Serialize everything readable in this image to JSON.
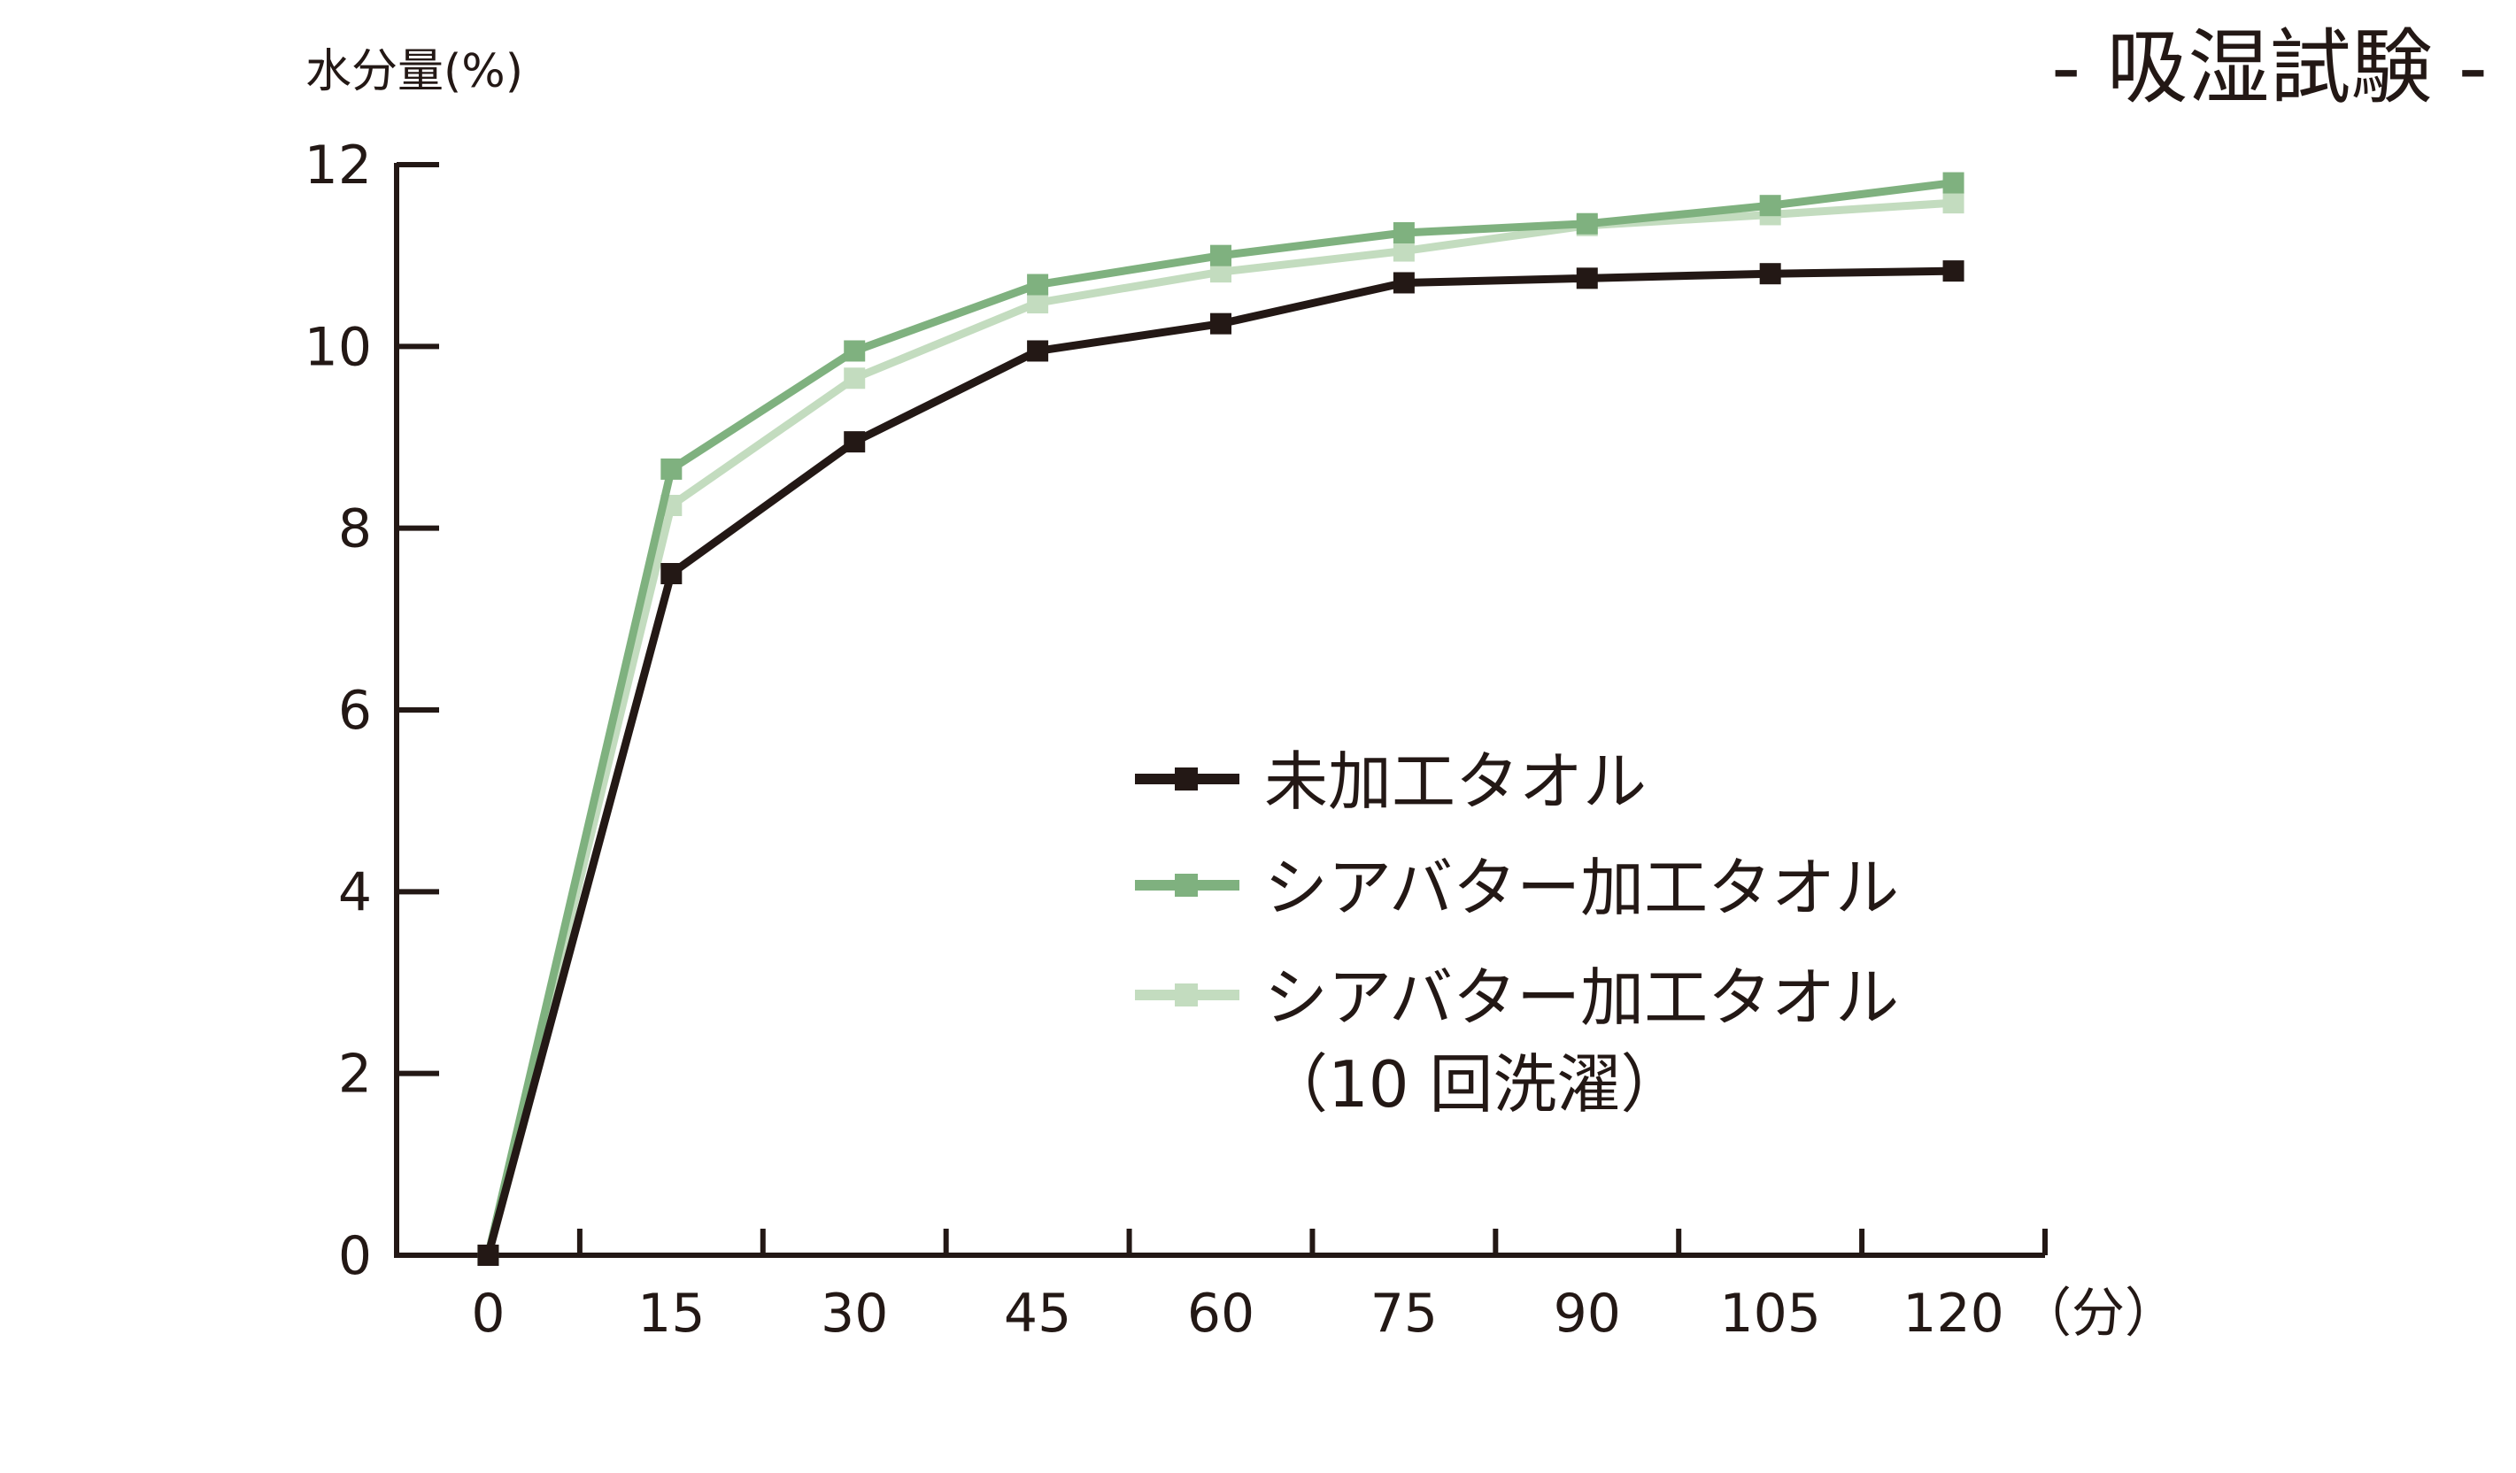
{
  "title": "- 吸湿試験 -",
  "chart_data": {
    "type": "line",
    "title": "- 吸湿試験 -",
    "ylabel": "水分量(%)",
    "xlabel": "",
    "x_unit": "（分）",
    "x": [
      0,
      15,
      30,
      45,
      60,
      75,
      90,
      105,
      120
    ],
    "x_tick_labels": [
      "0",
      "15",
      "30",
      "45",
      "60",
      "75",
      "90",
      "105",
      "120"
    ],
    "y_ticks": [
      0,
      2,
      4,
      6,
      8,
      10,
      12
    ],
    "y_tick_labels": [
      "0",
      "2",
      "4",
      "6",
      "8",
      "10",
      "12"
    ],
    "xlim": [
      -7.5,
      127.5
    ],
    "ylim": [
      0,
      12
    ],
    "grid": false,
    "legend_position": "center-right",
    "series": [
      {
        "name": "未加工タオル",
        "label_lines": [
          "未加工タオル"
        ],
        "color": "#231815",
        "marker": "square",
        "values": [
          0,
          7.5,
          8.95,
          9.95,
          10.25,
          10.7,
          10.75,
          10.8,
          10.83
        ]
      },
      {
        "name": "シアバター加工タオル",
        "label_lines": [
          "シアバター加工タオル"
        ],
        "color": "#7fb17f",
        "marker": "square",
        "values": [
          0,
          8.65,
          9.95,
          10.68,
          11.0,
          11.25,
          11.35,
          11.55,
          11.8
        ]
      },
      {
        "name": "シアバター加工タオル（10 回洗濯）",
        "label_lines": [
          "シアバター加工タオル",
          "（10 回洗濯）"
        ],
        "color": "#c3dcbf",
        "marker": "square",
        "values": [
          0,
          8.25,
          9.65,
          10.48,
          10.82,
          11.05,
          11.33,
          11.45,
          11.58
        ]
      }
    ]
  }
}
